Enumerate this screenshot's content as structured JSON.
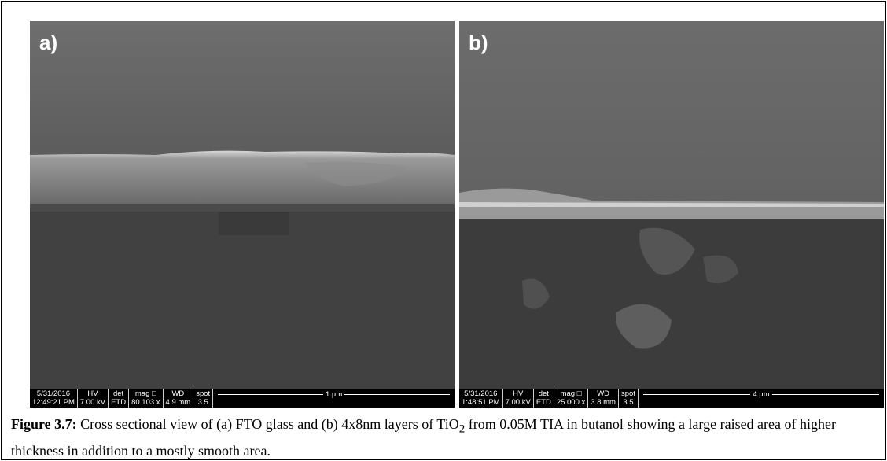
{
  "panels": [
    {
      "label": "a)",
      "databar": {
        "date": "5/31/2016",
        "time": "12:49:21 PM",
        "hv_label": "HV",
        "hv": "7.00 kV",
        "det_label": "det",
        "det": "ETD",
        "mag_label": "mag □",
        "mag": "80 103 x",
        "wd_label": "WD",
        "wd": "4.9 mm",
        "spot_label": "spot",
        "spot": "3.5",
        "scale": "1 µm"
      }
    },
    {
      "label": "b)",
      "databar": {
        "date": "5/31/2016",
        "time": "1:48:51 PM",
        "hv_label": "HV",
        "hv": "7.00 kV",
        "det_label": "det",
        "det": "ETD",
        "mag_label": "mag □",
        "mag": "25 000 x",
        "wd_label": "WD",
        "wd": "3.8 mm",
        "spot_label": "spot",
        "spot": "3.5",
        "scale": "4 µm"
      }
    }
  ],
  "caption": {
    "label": "Figure 3.7:",
    "text_before": " Cross sectional view of (a) FTO glass and (b) 4x8nm layers of TiO",
    "subscript": "2",
    "text_after": " from 0.05M TIA in butanol showing a large raised area of higher thickness in addition to a mostly smooth area."
  }
}
